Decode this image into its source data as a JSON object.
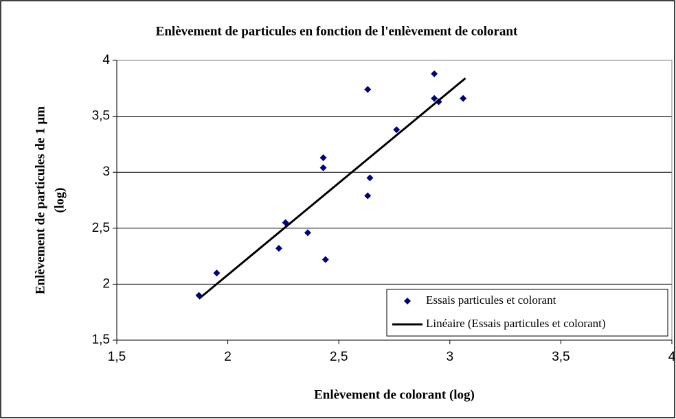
{
  "chart_data": {
    "type": "scatter",
    "title": "Enlèvement de particules en fonction de l'enlèvement de colorant",
    "x_label": "Enlèvement de colorant (log)",
    "y_label": [
      "Enlèvement de particules de 1 µm",
      "(log)"
    ],
    "xlim": [
      1.5,
      4
    ],
    "xticks": [
      {
        "value": 1.5,
        "label": "1,5"
      },
      2,
      {
        "value": 2.5,
        "label": "2,5"
      },
      3,
      {
        "value": 3.5,
        "label": "3,5"
      },
      4
    ],
    "ylim": [
      1.5,
      4
    ],
    "yticks": [
      {
        "value": 1.5,
        "label": "1,5"
      },
      2,
      {
        "value": 2.5,
        "label": "2,5"
      },
      3,
      {
        "value": 3.5,
        "label": "3,5"
      },
      4
    ],
    "grid": true,
    "legend": "lower right",
    "series": [
      {
        "name": "Essais particules et colorant",
        "type": "scatter",
        "color": "#000080",
        "x": [
          1.87,
          1.95,
          2.23,
          2.26,
          2.36,
          2.43,
          2.43,
          2.44,
          2.63,
          2.63,
          2.64,
          2.76,
          2.93,
          2.93,
          2.95,
          3.06
        ],
        "values": [
          1.9,
          2.1,
          2.32,
          2.55,
          2.46,
          3.13,
          3.04,
          2.22,
          3.74,
          2.79,
          2.95,
          3.38,
          3.88,
          3.66,
          3.63,
          3.66
        ]
      },
      {
        "name": "Linéaire (Essais particules et colorant)",
        "type": "line",
        "color": "#000000",
        "x": [
          1.87,
          3.07
        ],
        "values": [
          1.87,
          3.84
        ]
      }
    ]
  }
}
